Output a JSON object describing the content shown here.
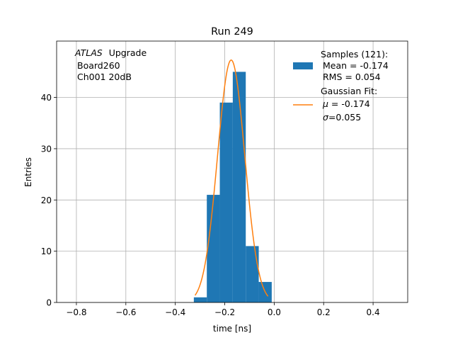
{
  "chart_data": {
    "type": "bar",
    "title": "Run 249",
    "xlabel": "time [ns]",
    "ylabel": "Entries",
    "xlim": [
      -0.88,
      0.54
    ],
    "ylim": [
      0,
      51
    ],
    "grid": true,
    "xticks": [
      -0.8,
      -0.6,
      -0.4,
      -0.2,
      0.0,
      0.2,
      0.4
    ],
    "xtick_labels": [
      "−0.8",
      "−0.6",
      "−0.4",
      "−0.2",
      "0.0",
      "0.2",
      "0.4"
    ],
    "yticks": [
      0,
      10,
      20,
      30,
      40
    ],
    "ytick_labels": [
      "0",
      "10",
      "20",
      "30",
      "40"
    ],
    "bins": [
      {
        "x0": -0.325,
        "x1": -0.2725,
        "value": 1
      },
      {
        "x0": -0.2725,
        "x1": -0.22,
        "value": 21
      },
      {
        "x0": -0.22,
        "x1": -0.1675,
        "value": 39
      },
      {
        "x0": -0.1675,
        "x1": -0.115,
        "value": 45
      },
      {
        "x0": -0.115,
        "x1": -0.0625,
        "value": 11
      },
      {
        "x0": -0.0625,
        "x1": -0.01,
        "value": 4
      }
    ],
    "fit": {
      "mu": -0.174,
      "sigma": 0.055,
      "amplitude": 47.3,
      "range": [
        -0.32,
        -0.025
      ]
    },
    "colors": {
      "hist": "#1f77b4",
      "fit": "#ff7f0e",
      "grid": "#b0b0b0"
    },
    "annotation": {
      "experiment": "ATLAS",
      "tag": "Upgrade",
      "line2": "Board260",
      "line3": "Ch001 20dB"
    },
    "legend": {
      "position": "top-right",
      "samples": {
        "line1": "Samples (121):",
        "line2": "Mean = -0.174",
        "line3": "RMS = 0.054"
      },
      "fit": {
        "line1": "Gaussian Fit:",
        "mu_symbol": "μ",
        "mu_text": " = -0.174",
        "sigma_symbol": "σ",
        "sigma_text": "=0.055"
      }
    }
  }
}
